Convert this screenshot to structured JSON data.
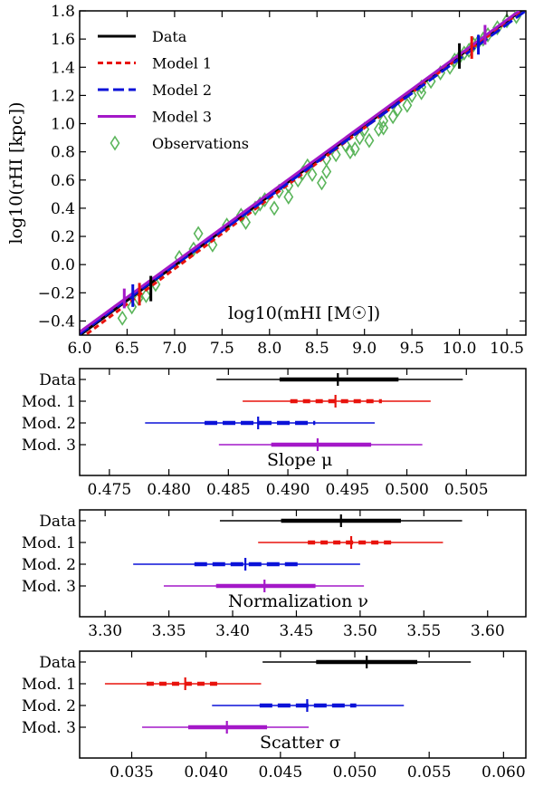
{
  "chart_data": [
    {
      "type": "scatter",
      "title": "",
      "xlabel": "log10(mHI [M☉])",
      "ylabel": "log10(rHI [kpc])",
      "xlim": [
        6.0,
        10.7
      ],
      "ylim": [
        -0.5,
        1.8
      ],
      "xticks": [
        "6.0",
        "6.5",
        "7.0",
        "7.5",
        "8.0",
        "8.5",
        "9.0",
        "9.5",
        "10.0",
        "10.5"
      ],
      "yticks": [
        "−0.4",
        "−0.2",
        "0.0",
        "0.2",
        "0.4",
        "0.6",
        "0.8",
        "1.0",
        "1.2",
        "1.4",
        "1.6",
        "1.8"
      ],
      "legend_position": "top-left",
      "series": [
        {
          "name": "Data",
          "style": "solid",
          "color": "#000000",
          "line": {
            "slope": 0.4955,
            "intercept": -3.475
          },
          "errorbars": [
            {
              "x": 6.75,
              "y": -0.17,
              "dy": 0.09
            },
            {
              "x": 10.0,
              "y": 1.48,
              "dy": 0.09
            }
          ]
        },
        {
          "name": "Model 1",
          "style": "dashed",
          "color": "#e8130d",
          "line": {
            "slope": 0.5,
            "intercept": -3.53
          },
          "errorbars": [
            {
              "x": 6.63,
              "y": -0.21,
              "dy": 0.08
            },
            {
              "x": 10.13,
              "y": 1.54,
              "dy": 0.08
            }
          ]
        },
        {
          "name": "Model 2",
          "style": "longdash",
          "color": "#0b12d8",
          "line": {
            "slope": 0.488,
            "intercept": -3.42
          },
          "errorbars": [
            {
              "x": 6.56,
              "y": -0.22,
              "dy": 0.08
            },
            {
              "x": 10.2,
              "y": 1.56,
              "dy": 0.07
            }
          ]
        },
        {
          "name": "Model 3",
          "style": "solid",
          "color": "#a418c8",
          "line": {
            "slope": 0.492,
            "intercept": -3.43
          },
          "errorbars": [
            {
              "x": 6.47,
              "y": -0.24,
              "dy": 0.07
            },
            {
              "x": 10.27,
              "y": 1.63,
              "dy": 0.07
            }
          ]
        },
        {
          "name": "Observations",
          "style": "marker",
          "color": "#5bb55b",
          "points": [
            [
              6.45,
              -0.38
            ],
            [
              6.55,
              -0.3
            ],
            [
              6.62,
              -0.24
            ],
            [
              6.7,
              -0.22
            ],
            [
              6.8,
              -0.14
            ],
            [
              7.05,
              0.05
            ],
            [
              7.2,
              0.11
            ],
            [
              7.25,
              0.22
            ],
            [
              7.4,
              0.14
            ],
            [
              7.55,
              0.28
            ],
            [
              7.7,
              0.35
            ],
            [
              7.75,
              0.3
            ],
            [
              7.85,
              0.4
            ],
            [
              7.95,
              0.46
            ],
            [
              8.05,
              0.4
            ],
            [
              8.1,
              0.52
            ],
            [
              8.2,
              0.56
            ],
            [
              8.3,
              0.6
            ],
            [
              8.35,
              0.65
            ],
            [
              8.4,
              0.7
            ],
            [
              8.45,
              0.64
            ],
            [
              8.55,
              0.58
            ],
            [
              8.6,
              0.75
            ],
            [
              8.7,
              0.78
            ],
            [
              8.8,
              0.85
            ],
            [
              8.85,
              0.8
            ],
            [
              8.95,
              0.9
            ],
            [
              9.0,
              0.96
            ],
            [
              9.05,
              0.88
            ],
            [
              9.15,
              0.96
            ],
            [
              9.2,
              1.02
            ],
            [
              9.3,
              1.05
            ],
            [
              9.35,
              1.1
            ],
            [
              9.45,
              1.13
            ],
            [
              9.5,
              1.2
            ],
            [
              9.6,
              1.22
            ],
            [
              9.7,
              1.3
            ],
            [
              9.8,
              1.36
            ],
            [
              9.9,
              1.4
            ],
            [
              9.95,
              1.45
            ],
            [
              10.05,
              1.5
            ],
            [
              10.1,
              1.52
            ],
            [
              10.15,
              1.56
            ],
            [
              10.2,
              1.58
            ],
            [
              10.3,
              1.63
            ],
            [
              10.4,
              1.68
            ],
            [
              10.5,
              1.73
            ],
            [
              10.6,
              1.76
            ],
            [
              8.2,
              0.48
            ],
            [
              8.9,
              0.82
            ],
            [
              9.2,
              0.97
            ],
            [
              7.9,
              0.43
            ],
            [
              8.6,
              0.66
            ],
            [
              9.6,
              1.26
            ],
            [
              10.0,
              1.47
            ],
            [
              10.25,
              1.6
            ]
          ]
        }
      ]
    },
    {
      "type": "interval",
      "xlabel": "Slope μ",
      "xlim": [
        0.4725,
        0.51
      ],
      "xticks": [
        "0.475",
        "0.480",
        "0.485",
        "0.490",
        "0.495",
        "0.500",
        "0.505"
      ],
      "rows": [
        {
          "label": "Data",
          "color": "#000000",
          "style": "solid",
          "median": 0.4942,
          "inner": [
            0.4893,
            0.4993
          ],
          "outer": [
            0.484,
            0.5047
          ]
        },
        {
          "label": "Mod. 1",
          "color": "#e8130d",
          "style": "dashed",
          "median": 0.494,
          "inner": [
            0.4902,
            0.4979
          ],
          "outer": [
            0.4862,
            0.502
          ]
        },
        {
          "label": "Mod. 2",
          "color": "#0b12d8",
          "style": "longdash",
          "median": 0.4875,
          "inner": [
            0.483,
            0.4923
          ],
          "outer": [
            0.478,
            0.4973
          ]
        },
        {
          "label": "Mod. 3",
          "color": "#a418c8",
          "style": "solid",
          "median": 0.4925,
          "inner": [
            0.4886,
            0.497
          ],
          "outer": [
            0.4842,
            0.5013
          ]
        }
      ]
    },
    {
      "type": "interval",
      "xlabel": "Normalization ν",
      "xlim": [
        3.28,
        3.63
      ],
      "xticks": [
        "3.30",
        "3.35",
        "3.40",
        "3.45",
        "3.50",
        "3.55",
        "3.60"
      ],
      "rows": [
        {
          "label": "Data",
          "color": "#000000",
          "style": "solid",
          "median": 3.485,
          "inner": [
            3.438,
            3.532
          ],
          "outer": [
            3.39,
            3.58
          ]
        },
        {
          "label": "Mod. 1",
          "color": "#e8130d",
          "style": "dashed",
          "median": 3.493,
          "inner": [
            3.459,
            3.527
          ],
          "outer": [
            3.42,
            3.565
          ]
        },
        {
          "label": "Mod. 2",
          "color": "#0b12d8",
          "style": "longdash",
          "median": 3.41,
          "inner": [
            3.37,
            3.453
          ],
          "outer": [
            3.322,
            3.5
          ]
        },
        {
          "label": "Mod. 3",
          "color": "#a418c8",
          "style": "solid",
          "median": 3.425,
          "inner": [
            3.387,
            3.465
          ],
          "outer": [
            3.346,
            3.503
          ]
        }
      ]
    },
    {
      "type": "interval",
      "xlabel": "Scatter σ",
      "xlim": [
        0.0315,
        0.0615
      ],
      "xticks": [
        "0.035",
        "0.040",
        "0.045",
        "0.050",
        "0.055",
        "0.060"
      ],
      "rows": [
        {
          "label": "Data",
          "color": "#000000",
          "style": "solid",
          "median": 0.0508,
          "inner": [
            0.0474,
            0.0542
          ],
          "outer": [
            0.0438,
            0.0578
          ]
        },
        {
          "label": "Mod. 1",
          "color": "#e8130d",
          "style": "dashed",
          "median": 0.0386,
          "inner": [
            0.036,
            0.0411
          ],
          "outer": [
            0.0332,
            0.0437
          ]
        },
        {
          "label": "Mod. 2",
          "color": "#0b12d8",
          "style": "longdash",
          "median": 0.0468,
          "inner": [
            0.0436,
            0.0501
          ],
          "outer": [
            0.0404,
            0.0533
          ]
        },
        {
          "label": "Mod. 3",
          "color": "#a418c8",
          "style": "solid",
          "median": 0.0414,
          "inner": [
            0.0388,
            0.0441
          ],
          "outer": [
            0.0357,
            0.0469
          ]
        }
      ]
    }
  ]
}
